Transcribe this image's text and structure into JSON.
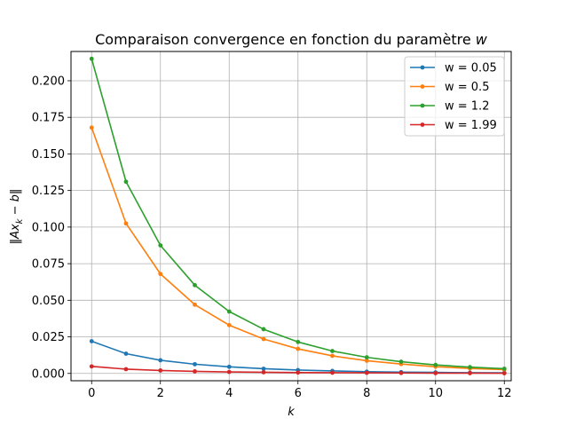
{
  "chart_data": {
    "type": "line",
    "title": "Comparaison convergence en fonction du paramètre w",
    "title_prefix": "Comparaison convergence en fonction du paramètre ",
    "title_var": "w",
    "xlabel": "k",
    "ylabel": "‖Ax_k − b‖",
    "ylabel_parts": {
      "open": "‖Ax",
      "sub": "k",
      "close": " − b‖"
    },
    "xlim": [
      -0.6,
      12.2
    ],
    "ylim": [
      -0.005,
      0.22
    ],
    "xticks": [
      0,
      2,
      4,
      6,
      8,
      10,
      12
    ],
    "yticks": [
      0.0,
      0.025,
      0.05,
      0.075,
      0.1,
      0.125,
      0.15,
      0.175,
      0.2
    ],
    "ytick_labels": [
      "0.000",
      "0.025",
      "0.050",
      "0.075",
      "0.100",
      "0.125",
      "0.150",
      "0.175",
      "0.200"
    ],
    "grid": true,
    "legend_position": "top-right",
    "x": [
      0,
      1,
      2,
      3,
      4,
      5,
      6,
      7,
      8,
      9,
      10,
      11,
      12
    ],
    "series": [
      {
        "name": "w = 0.05",
        "color": "#1f77b4",
        "values": [
          0.022,
          0.0135,
          0.009,
          0.0063,
          0.0045,
          0.0032,
          0.0023,
          0.0017,
          0.0012,
          0.0009,
          0.0007,
          0.0005,
          0.0004
        ]
      },
      {
        "name": "w = 0.5",
        "color": "#ff7f0e",
        "values": [
          0.168,
          0.1025,
          0.068,
          0.047,
          0.033,
          0.0235,
          0.0168,
          0.012,
          0.0087,
          0.0064,
          0.0046,
          0.0034,
          0.0026
        ]
      },
      {
        "name": "w = 1.2",
        "color": "#2ca02c",
        "values": [
          0.215,
          0.131,
          0.0875,
          0.0603,
          0.0423,
          0.0302,
          0.0215,
          0.0153,
          0.011,
          0.008,
          0.0058,
          0.0043,
          0.0032
        ]
      },
      {
        "name": "w = 1.99",
        "color": "#d62728",
        "values": [
          0.0048,
          0.0029,
          0.002,
          0.0014,
          0.001,
          0.0008,
          0.0006,
          0.0005,
          0.0004,
          0.0003,
          0.0002,
          0.0002,
          0.0001
        ]
      }
    ]
  }
}
